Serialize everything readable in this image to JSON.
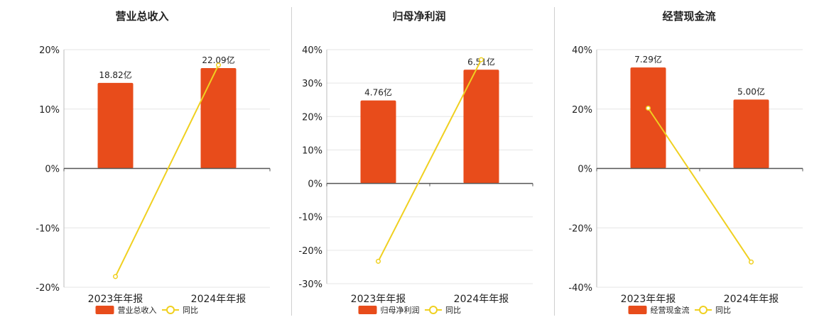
{
  "colors": {
    "bar": "#e84c1b",
    "line": "#f0d020",
    "grid": "#e6e6e6",
    "axis": "#555555",
    "text": "#222222"
  },
  "chart_data": [
    {
      "type": "bar",
      "title": "营业总收入",
      "categories": [
        "2023年年报",
        "2024年年报"
      ],
      "series": [
        {
          "name": "营业总收入",
          "kind": "bar",
          "values": [
            14.4,
            16.9
          ],
          "labels": [
            "18.82亿",
            "22.09亿"
          ]
        },
        {
          "name": "同比",
          "kind": "line",
          "values": [
            -18.2,
            17.4
          ]
        }
      ],
      "yticks": [
        "20%",
        "10%",
        "0%",
        "-10%",
        "-20%"
      ],
      "ylim": [
        -20,
        20
      ],
      "grid": true,
      "legend": "bottom"
    },
    {
      "type": "bar",
      "title": "归母净利润",
      "categories": [
        "2023年年报",
        "2024年年报"
      ],
      "series": [
        {
          "name": "归母净利润",
          "kind": "bar",
          "values": [
            24.8,
            34.0
          ],
          "labels": [
            "4.76亿",
            "6.51亿"
          ]
        },
        {
          "name": "同比",
          "kind": "line",
          "values": [
            -23.3,
            37.0
          ]
        }
      ],
      "yticks": [
        "40%",
        "30%",
        "20%",
        "10%",
        "0%",
        "-10%",
        "-20%",
        "-30%"
      ],
      "ylim": [
        -30,
        40
      ],
      "grid": true,
      "legend": "bottom"
    },
    {
      "type": "bar",
      "title": "经营现金流",
      "categories": [
        "2023年年报",
        "2024年年报"
      ],
      "series": [
        {
          "name": "经营现金流",
          "kind": "bar",
          "values": [
            34.0,
            23.2
          ],
          "labels": [
            "7.29亿",
            "5.00亿"
          ]
        },
        {
          "name": "同比",
          "kind": "line",
          "values": [
            20.3,
            -31.5
          ]
        }
      ],
      "yticks": [
        "40%",
        "20%",
        "0%",
        "-20%",
        "-40%"
      ],
      "ylim": [
        -40,
        40
      ],
      "grid": true,
      "legend": "bottom"
    }
  ]
}
